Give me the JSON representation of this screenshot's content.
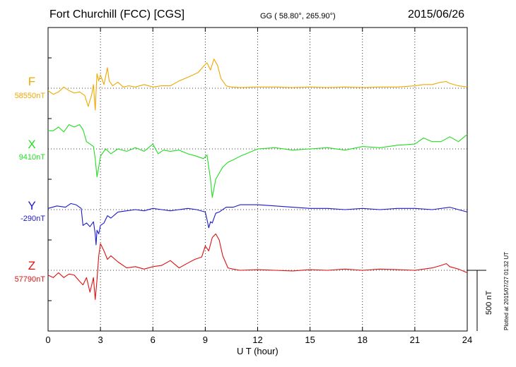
{
  "header": {
    "station": "Fort Churchill (FCC)  [CGS]",
    "coords": "GG ( 58.80°, 265.90°)",
    "date": "2015/06/26"
  },
  "footer": {
    "plotted": "Plotted at 2015/07/27 01:32 UT",
    "scale": "500 nT"
  },
  "chart_data": {
    "type": "line",
    "title": "Fort Churchill (FCC)  [CGS]",
    "xlabel": "U T (hour)",
    "ylabel": "",
    "xlim": [
      0,
      24
    ],
    "xticks": [
      0,
      3,
      6,
      9,
      12,
      15,
      18,
      21,
      24
    ],
    "grid": true,
    "scale_bar_nT": 500,
    "series": [
      {
        "name": "F",
        "baseline": "58550nT",
        "color": "#f0a800",
        "x": [
          0,
          0.3,
          0.6,
          0.9,
          1.2,
          1.5,
          1.8,
          2.1,
          2.3,
          2.5,
          2.6,
          2.7,
          2.8,
          2.9,
          3.0,
          3.2,
          3.4,
          3.5,
          3.7,
          4.0,
          4.3,
          4.6,
          5.0,
          5.5,
          6.0,
          6.5,
          7.0,
          7.5,
          8.0,
          8.3,
          8.6,
          8.9,
          9.1,
          9.3,
          9.5,
          9.7,
          9.9,
          10.2,
          10.5,
          11,
          12,
          13,
          14,
          15,
          16,
          17,
          18,
          19,
          20,
          21,
          21.5,
          22,
          22.5,
          22.8,
          23,
          23.5,
          24
        ],
        "values": [
          -20,
          -50,
          -30,
          10,
          -20,
          -40,
          -30,
          -60,
          -150,
          -50,
          30,
          -180,
          120,
          60,
          110,
          30,
          170,
          60,
          20,
          50,
          10,
          20,
          10,
          30,
          10,
          20,
          20,
          60,
          90,
          110,
          130,
          180,
          210,
          150,
          240,
          190,
          80,
          20,
          10,
          5,
          10,
          10,
          5,
          10,
          5,
          10,
          5,
          10,
          10,
          20,
          30,
          30,
          50,
          55,
          40,
          20,
          10
        ]
      },
      {
        "name": "X",
        "baseline": "9410nT",
        "color": "#22dd22",
        "x": [
          0,
          0.3,
          0.6,
          0.9,
          1.2,
          1.5,
          1.8,
          2.0,
          2.2,
          2.4,
          2.6,
          2.7,
          2.8,
          2.9,
          3.0,
          3.3,
          3.6,
          4.0,
          4.5,
          5.0,
          5.5,
          6.0,
          6.3,
          6.6,
          7.0,
          7.5,
          8.0,
          8.5,
          8.9,
          9.1,
          9.2,
          9.3,
          9.4,
          9.6,
          9.8,
          10.0,
          10.3,
          10.6,
          11,
          11.5,
          12,
          13,
          14,
          15,
          16,
          17,
          18,
          19,
          20,
          21,
          21.5,
          22,
          22.5,
          23,
          23.5,
          24
        ],
        "values": [
          150,
          150,
          180,
          140,
          200,
          180,
          200,
          160,
          60,
          40,
          20,
          -80,
          -230,
          -150,
          -60,
          0,
          -40,
          0,
          -20,
          10,
          -20,
          40,
          -40,
          -10,
          -20,
          -10,
          -40,
          -60,
          -80,
          -50,
          -150,
          -250,
          -400,
          -250,
          -200,
          -150,
          -110,
          -90,
          -60,
          -30,
          0,
          10,
          -10,
          0,
          10,
          -10,
          20,
          10,
          30,
          40,
          90,
          60,
          60,
          100,
          60,
          120
        ]
      },
      {
        "name": "Y",
        "baseline": "-290nT",
        "color": "#1a1acc",
        "x": [
          0,
          0.5,
          1.0,
          1.3,
          1.6,
          1.9,
          2.0,
          2.2,
          2.4,
          2.6,
          2.7,
          2.75,
          2.8,
          2.9,
          3.0,
          3.2,
          3.4,
          3.6,
          4.0,
          4.5,
          5.0,
          5.5,
          6.0,
          6.5,
          7.0,
          7.5,
          8.0,
          8.5,
          9.0,
          9.1,
          9.2,
          9.3,
          9.4,
          9.6,
          9.8,
          10.2,
          10.6,
          11,
          12,
          13,
          14,
          15,
          16,
          17,
          18,
          19,
          20,
          21,
          22,
          23,
          23.5,
          24
        ],
        "values": [
          10,
          30,
          20,
          50,
          40,
          10,
          -130,
          -110,
          -140,
          -100,
          -200,
          -290,
          -170,
          -200,
          -130,
          -110,
          -50,
          -70,
          -20,
          -10,
          0,
          -10,
          10,
          0,
          -10,
          0,
          10,
          0,
          -20,
          -80,
          -150,
          -100,
          -110,
          -30,
          -20,
          20,
          20,
          40,
          40,
          30,
          20,
          10,
          10,
          0,
          10,
          0,
          10,
          10,
          0,
          20,
          0,
          -20
        ]
      },
      {
        "name": "Z",
        "baseline": "57790nT",
        "color": "#dd1111",
        "x": [
          0,
          0.3,
          0.6,
          0.9,
          1.2,
          1.5,
          1.8,
          2.0,
          2.2,
          2.4,
          2.6,
          2.7,
          2.8,
          2.9,
          3.0,
          3.2,
          3.4,
          3.6,
          4.0,
          4.5,
          5.0,
          5.5,
          6.0,
          6.5,
          7.0,
          7.5,
          8.0,
          8.4,
          8.8,
          9.0,
          9.2,
          9.4,
          9.6,
          9.8,
          10.0,
          10.3,
          10.6,
          11,
          12,
          13,
          14,
          15,
          16,
          17,
          18,
          19,
          20,
          21,
          21.5,
          22,
          22.5,
          22.8,
          23,
          23.5,
          24
        ],
        "values": [
          -40,
          -60,
          -20,
          -60,
          -30,
          -40,
          -90,
          -120,
          -60,
          -180,
          -60,
          -240,
          -80,
          120,
          220,
          160,
          90,
          120,
          70,
          20,
          30,
          10,
          30,
          40,
          80,
          20,
          60,
          90,
          110,
          200,
          160,
          270,
          300,
          250,
          120,
          20,
          10,
          0,
          5,
          0,
          -5,
          5,
          0,
          10,
          0,
          10,
          5,
          0,
          10,
          20,
          40,
          55,
          30,
          10,
          -20
        ]
      }
    ]
  }
}
